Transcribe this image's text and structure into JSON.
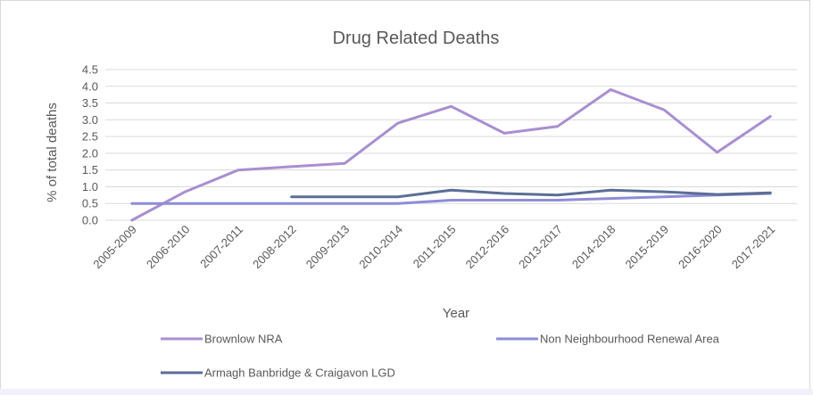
{
  "chart_data": {
    "type": "line",
    "title": "Drug Related Deaths",
    "xlabel": "Year",
    "ylabel": "% of total deaths",
    "ylim": [
      0,
      4.5
    ],
    "yticks": [
      "0.0",
      "0.5",
      "1.0",
      "1.5",
      "2.0",
      "2.5",
      "3.0",
      "3.5",
      "4.0",
      "4.5"
    ],
    "grid": true,
    "legend_position": "bottom",
    "categories": [
      "2005-2009",
      "2006-2010",
      "2007-2011",
      "2008-2012",
      "2009-2013",
      "2010-2014",
      "2011-2015",
      "2012-2016",
      "2013-2017",
      "2014-2018",
      "2015-2019",
      "2016-2020",
      "2017-2021"
    ],
    "series": [
      {
        "name": "Brownlow NRA",
        "color": "#a98fd0",
        "values": [
          0.0,
          0.85,
          1.5,
          1.6,
          1.7,
          2.9,
          3.4,
          2.6,
          2.8,
          3.9,
          3.3,
          2.03,
          3.1
        ]
      },
      {
        "name": "Non Neighbourhood Renewal Area",
        "color": "#8e8cd8",
        "values": [
          0.5,
          0.5,
          0.5,
          0.5,
          0.5,
          0.5,
          0.6,
          0.6,
          0.6,
          0.65,
          0.7,
          0.75,
          0.8
        ]
      },
      {
        "name": "Armagh Banbridge & Craigavon LGD",
        "color": "#5b6e96",
        "values": [
          null,
          null,
          null,
          0.7,
          0.7,
          0.7,
          0.9,
          0.8,
          0.75,
          0.9,
          0.85,
          0.77,
          0.82
        ]
      }
    ]
  }
}
